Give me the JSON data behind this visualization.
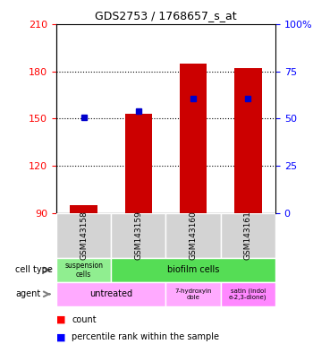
{
  "title": "GDS2753 / 1768657_s_at",
  "samples": [
    "GSM143158",
    "GSM143159",
    "GSM143160",
    "GSM143161"
  ],
  "bar_bottoms": [
    90,
    90,
    90,
    90
  ],
  "bar_tops": [
    95,
    153,
    185,
    182
  ],
  "bar_color": "#cc0000",
  "percentile_values": [
    151,
    155,
    163,
    163
  ],
  "percentile_color": "#0000cc",
  "ylim_left": [
    90,
    210
  ],
  "ylim_right": [
    0,
    100
  ],
  "yticks_left": [
    90,
    120,
    150,
    180,
    210
  ],
  "yticks_right": [
    0,
    25,
    50,
    75,
    100
  ],
  "ytick_right_labels": [
    "0",
    "25",
    "50",
    "75",
    "100%"
  ],
  "cell_type_row": [
    {
      "label": "suspension\ncells",
      "color": "#90ee90",
      "span": 1
    },
    {
      "label": "biofilm cells",
      "color": "#55dd55",
      "span": 3
    }
  ],
  "agent_row": [
    {
      "label": "untreated",
      "color": "#ffaaff",
      "span": 2
    },
    {
      "label": "7-hydroxyin\ndole",
      "color": "#ffaaff",
      "span": 1
    },
    {
      "label": "satin (indol\ne-2,3-dione)",
      "color": "#ff88ff",
      "span": 1
    }
  ],
  "legend_count_color": "#cc0000",
  "legend_pct_color": "#0000cc",
  "row_label_cell_type": "cell type",
  "row_label_agent": "agent",
  "bar_width": 0.5
}
